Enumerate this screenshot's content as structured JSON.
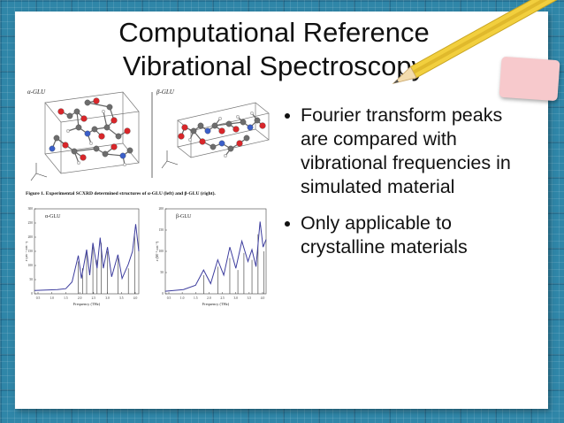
{
  "slide": {
    "title_line1": "Computational Reference",
    "title_line2": "Vibrational Spectroscopy",
    "bullets": [
      "Fourier transform peaks are compared with vibrational frequencies in simulated material",
      "Only applicable to crystalline materials"
    ]
  },
  "figure": {
    "panel_left_label": "α-GLU",
    "panel_right_label": "β-GLU",
    "caption": "Figure 1. Experimental SCXRD determined structures of α-GLU (left) and β-GLU (right).",
    "charts": [
      {
        "label": "α-GLU",
        "xlabel": "Frequency (THz)",
        "ylabel": "ε (M⁻¹ cm⁻¹)",
        "xticks": [
          "0.5",
          "1.0",
          "1.5",
          "2.0",
          "2.5",
          "3.0",
          "3.5",
          "4.0"
        ],
        "yticks": [
          "0",
          "50",
          "100",
          "150",
          "200",
          "250",
          "300"
        ]
      },
      {
        "label": "β-GLU",
        "xlabel": "Frequency (THz)",
        "ylabel": "ε (M⁻¹ cm⁻¹)",
        "xticks": [
          "0.5",
          "1.0",
          "1.5",
          "2.0",
          "2.5",
          "3.0",
          "3.5",
          "4.0"
        ],
        "yticks": [
          "0",
          "50",
          "100",
          "150",
          "200"
        ]
      }
    ]
  },
  "colors": {
    "background": "#2f86a8",
    "spectrum_line": "#3d3d9e",
    "sticks": "#333333",
    "pencil": "#f2cf3e",
    "sticky_note": "#f7c9cc"
  }
}
